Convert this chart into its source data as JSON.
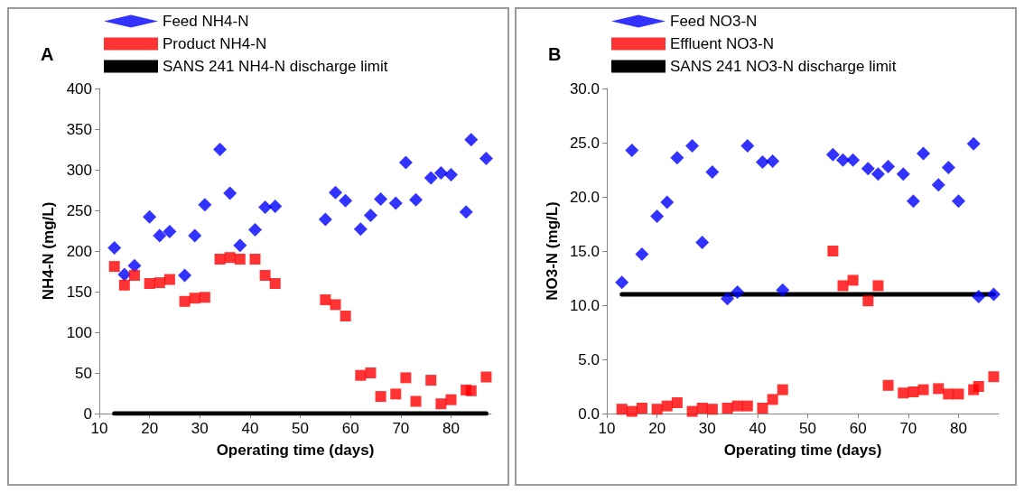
{
  "chart_data": [
    {
      "type": "scatter",
      "title": "A",
      "xlabel": "Operating time (days)",
      "ylabel": "NH4-N (mg/L)",
      "x": [
        13,
        15,
        17,
        20,
        22,
        24,
        27,
        29,
        31,
        34,
        36,
        38,
        41,
        43,
        45,
        55,
        57,
        59,
        62,
        64,
        66,
        69,
        71,
        73,
        76,
        78,
        80,
        83,
        84,
        87
      ],
      "series": [
        {
          "name": "Feed NH4-N",
          "color": "#0000ff",
          "marker": "diamond",
          "values": [
            204,
            171,
            182,
            242,
            219,
            224,
            170,
            219,
            257,
            325,
            271,
            207,
            226,
            254,
            255,
            239,
            272,
            262,
            227,
            244,
            264,
            259,
            309,
            263,
            290,
            296,
            294,
            248,
            337,
            314
          ]
        },
        {
          "name": "Product NH4-N",
          "color": "#ff0000",
          "marker": "square",
          "values": [
            181,
            158,
            170,
            160,
            161,
            165,
            138,
            142,
            143,
            190,
            192,
            190,
            190,
            170,
            160,
            140,
            134,
            120,
            47,
            50,
            21,
            24,
            44,
            15,
            41,
            12,
            17,
            29,
            28,
            45
          ]
        },
        {
          "name": "SANS 241 NH4-N discharge limit",
          "color": "#000000",
          "type": "line",
          "marker": "none",
          "values": [
            0,
            0,
            0,
            0,
            0,
            0,
            0,
            0,
            0,
            0,
            0,
            0,
            0,
            0,
            0,
            0,
            0,
            0,
            0,
            0,
            0,
            0,
            0,
            0,
            0,
            0,
            0,
            0,
            0,
            0
          ]
        }
      ],
      "xlim": [
        10,
        88
      ],
      "xticks": [
        10,
        20,
        30,
        40,
        50,
        60,
        70,
        80
      ],
      "ylim": [
        0,
        400
      ],
      "yticks": [
        0,
        50,
        100,
        150,
        200,
        250,
        300,
        350,
        400
      ],
      "grid": false,
      "legend": "top"
    },
    {
      "type": "scatter",
      "title": "B",
      "xlabel": "Operating time (days)",
      "ylabel": "NO3-N (mg/L)",
      "x": [
        13,
        15,
        17,
        20,
        22,
        24,
        27,
        29,
        31,
        34,
        36,
        38,
        41,
        43,
        45,
        55,
        57,
        59,
        62,
        64,
        66,
        69,
        71,
        73,
        76,
        78,
        80,
        83,
        84,
        87
      ],
      "series": [
        {
          "name": "Feed NO3-N",
          "color": "#0000ff",
          "marker": "diamond",
          "values": [
            12.1,
            24.3,
            14.7,
            18.2,
            19.5,
            23.6,
            24.7,
            15.8,
            22.3,
            10.6,
            11.2,
            24.7,
            23.2,
            23.3,
            11.4,
            23.9,
            23.4,
            23.4,
            22.6,
            22.1,
            22.8,
            22.1,
            19.6,
            24.0,
            21.1,
            22.7,
            19.6,
            24.9,
            10.8,
            11.0
          ]
        },
        {
          "name": "Effluent NO3-N",
          "color": "#ff0000",
          "marker": "square",
          "values": [
            0.4,
            0.2,
            0.5,
            0.4,
            0.7,
            1.0,
            0.2,
            0.5,
            0.4,
            0.5,
            0.7,
            0.7,
            0.5,
            1.3,
            2.2,
            15.0,
            11.8,
            12.3,
            10.4,
            11.8,
            2.6,
            1.9,
            2.0,
            2.2,
            2.3,
            1.8,
            1.8,
            2.2,
            2.5,
            3.4
          ]
        },
        {
          "name": "SANS 241 NO3-N discharge limit",
          "color": "#000000",
          "type": "line",
          "marker": "none",
          "values": [
            11.0,
            11.0,
            11.0,
            11.0,
            11.0,
            11.0,
            11.0,
            11.0,
            11.0,
            11.0,
            11.0,
            11.0,
            11.0,
            11.0,
            11.0,
            11.0,
            11.0,
            11.0,
            11.0,
            11.0,
            11.0,
            11.0,
            11.0,
            11.0,
            11.0,
            11.0,
            11.0,
            11.0,
            11.0,
            11.0
          ]
        }
      ],
      "xlim": [
        10,
        88
      ],
      "xticks": [
        10,
        20,
        30,
        40,
        50,
        60,
        70,
        80
      ],
      "ylim": [
        0,
        30
      ],
      "yticks": [
        {
          "value": 0,
          "label": "0.0"
        },
        {
          "value": 5,
          "label": "5.0"
        },
        {
          "value": 10,
          "label": "10.0"
        },
        {
          "value": 15,
          "label": "15.0"
        },
        {
          "value": 20,
          "label": "20.0"
        },
        {
          "value": 25,
          "label": "25.0"
        },
        {
          "value": 30,
          "label": "30.0"
        }
      ],
      "grid": false,
      "legend": "top"
    }
  ]
}
